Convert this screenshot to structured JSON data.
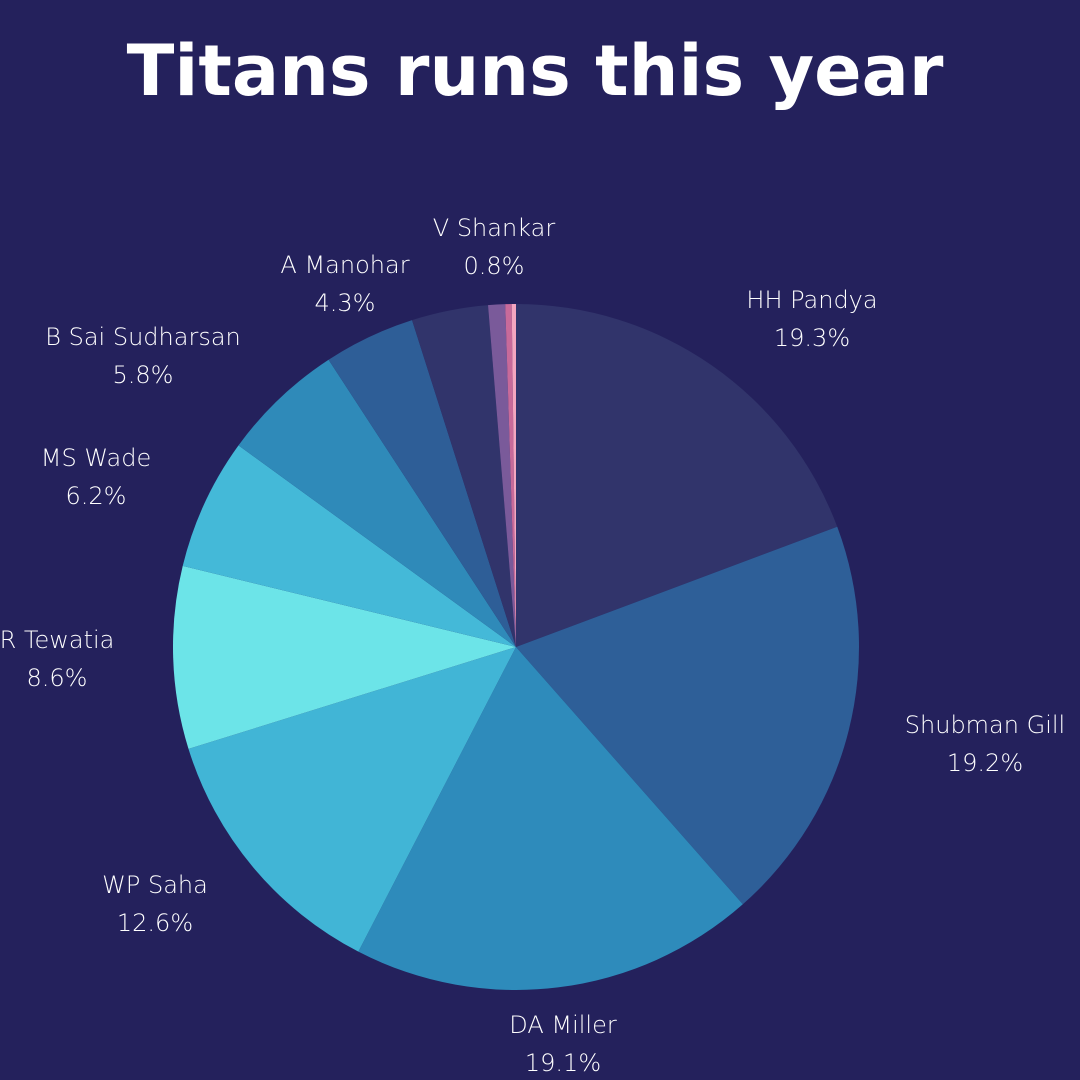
{
  "chart_data": {
    "type": "pie",
    "title": "Titans runs this year",
    "categories": [
      "HH Pandya",
      "Shubman Gill",
      "DA Miller",
      "WP Saha",
      "R Tewatia",
      "MS Wade",
      "B Sai Sudharsan",
      "A Manohar",
      null,
      "V Shankar",
      null,
      null
    ],
    "values": [
      19.3,
      19.2,
      19.1,
      12.6,
      8.6,
      6.2,
      5.8,
      4.3,
      3.6,
      0.8,
      0.3,
      0.2
    ],
    "value_labels": [
      "19.3%",
      "19.2%",
      "19.1%",
      "12.6%",
      "8.6%",
      "6.2%",
      "5.8%",
      "4.3%",
      null,
      "0.8%",
      null,
      null
    ],
    "colors": [
      "#31346b",
      "#2e5f98",
      "#2e8bbb",
      "#41b5d6",
      "#6ce4e8",
      "#44b9d8",
      "#2f8ab9",
      "#2e5e97",
      "#31346b",
      "#7a5a9a",
      "#c86a9a",
      "#f4a6c0"
    ]
  }
}
